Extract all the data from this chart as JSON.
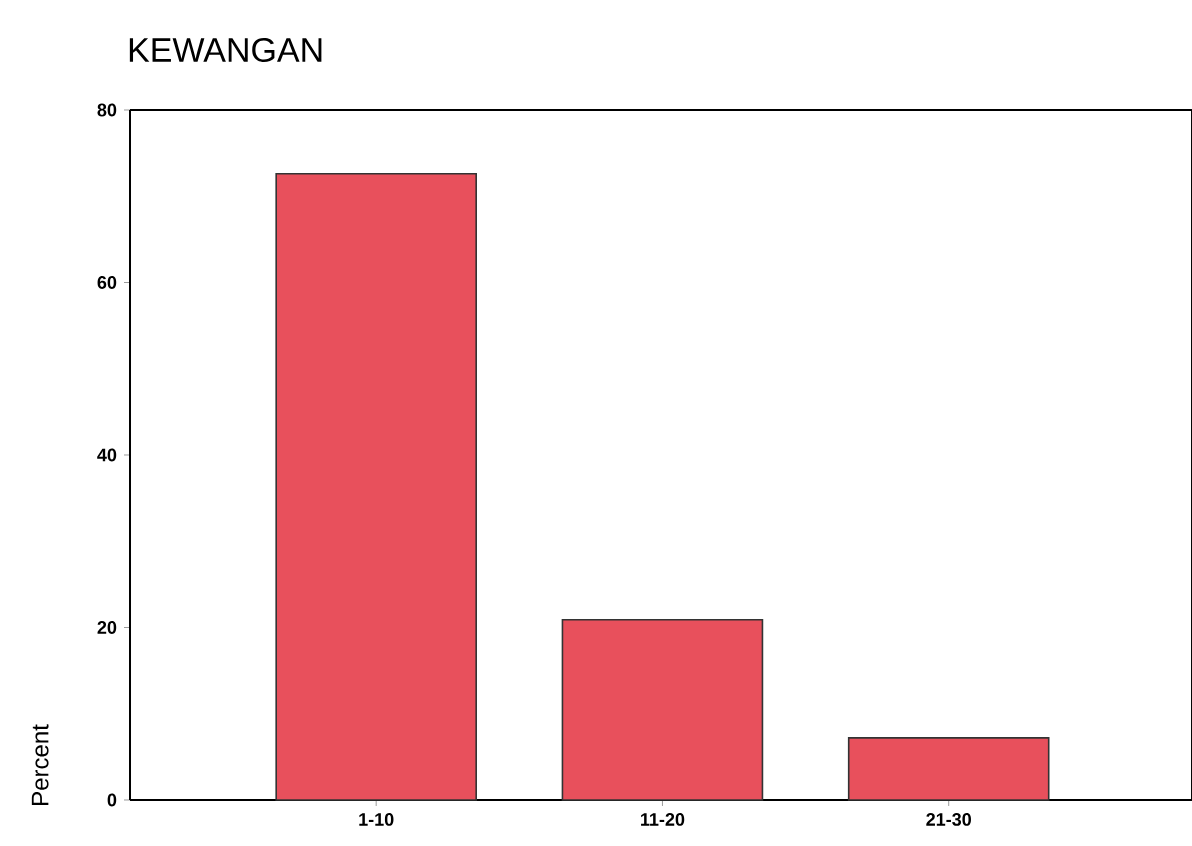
{
  "chart_data": {
    "type": "bar",
    "title": "KEWANGAN",
    "ylabel": "Percent",
    "categories": [
      "1-10",
      "11-20",
      "21-30"
    ],
    "values": [
      72.6,
      20.9,
      7.2
    ],
    "color": "#e8505c",
    "ylim": [
      0,
      80
    ],
    "yticks": [
      0,
      20,
      40,
      60,
      80
    ]
  }
}
